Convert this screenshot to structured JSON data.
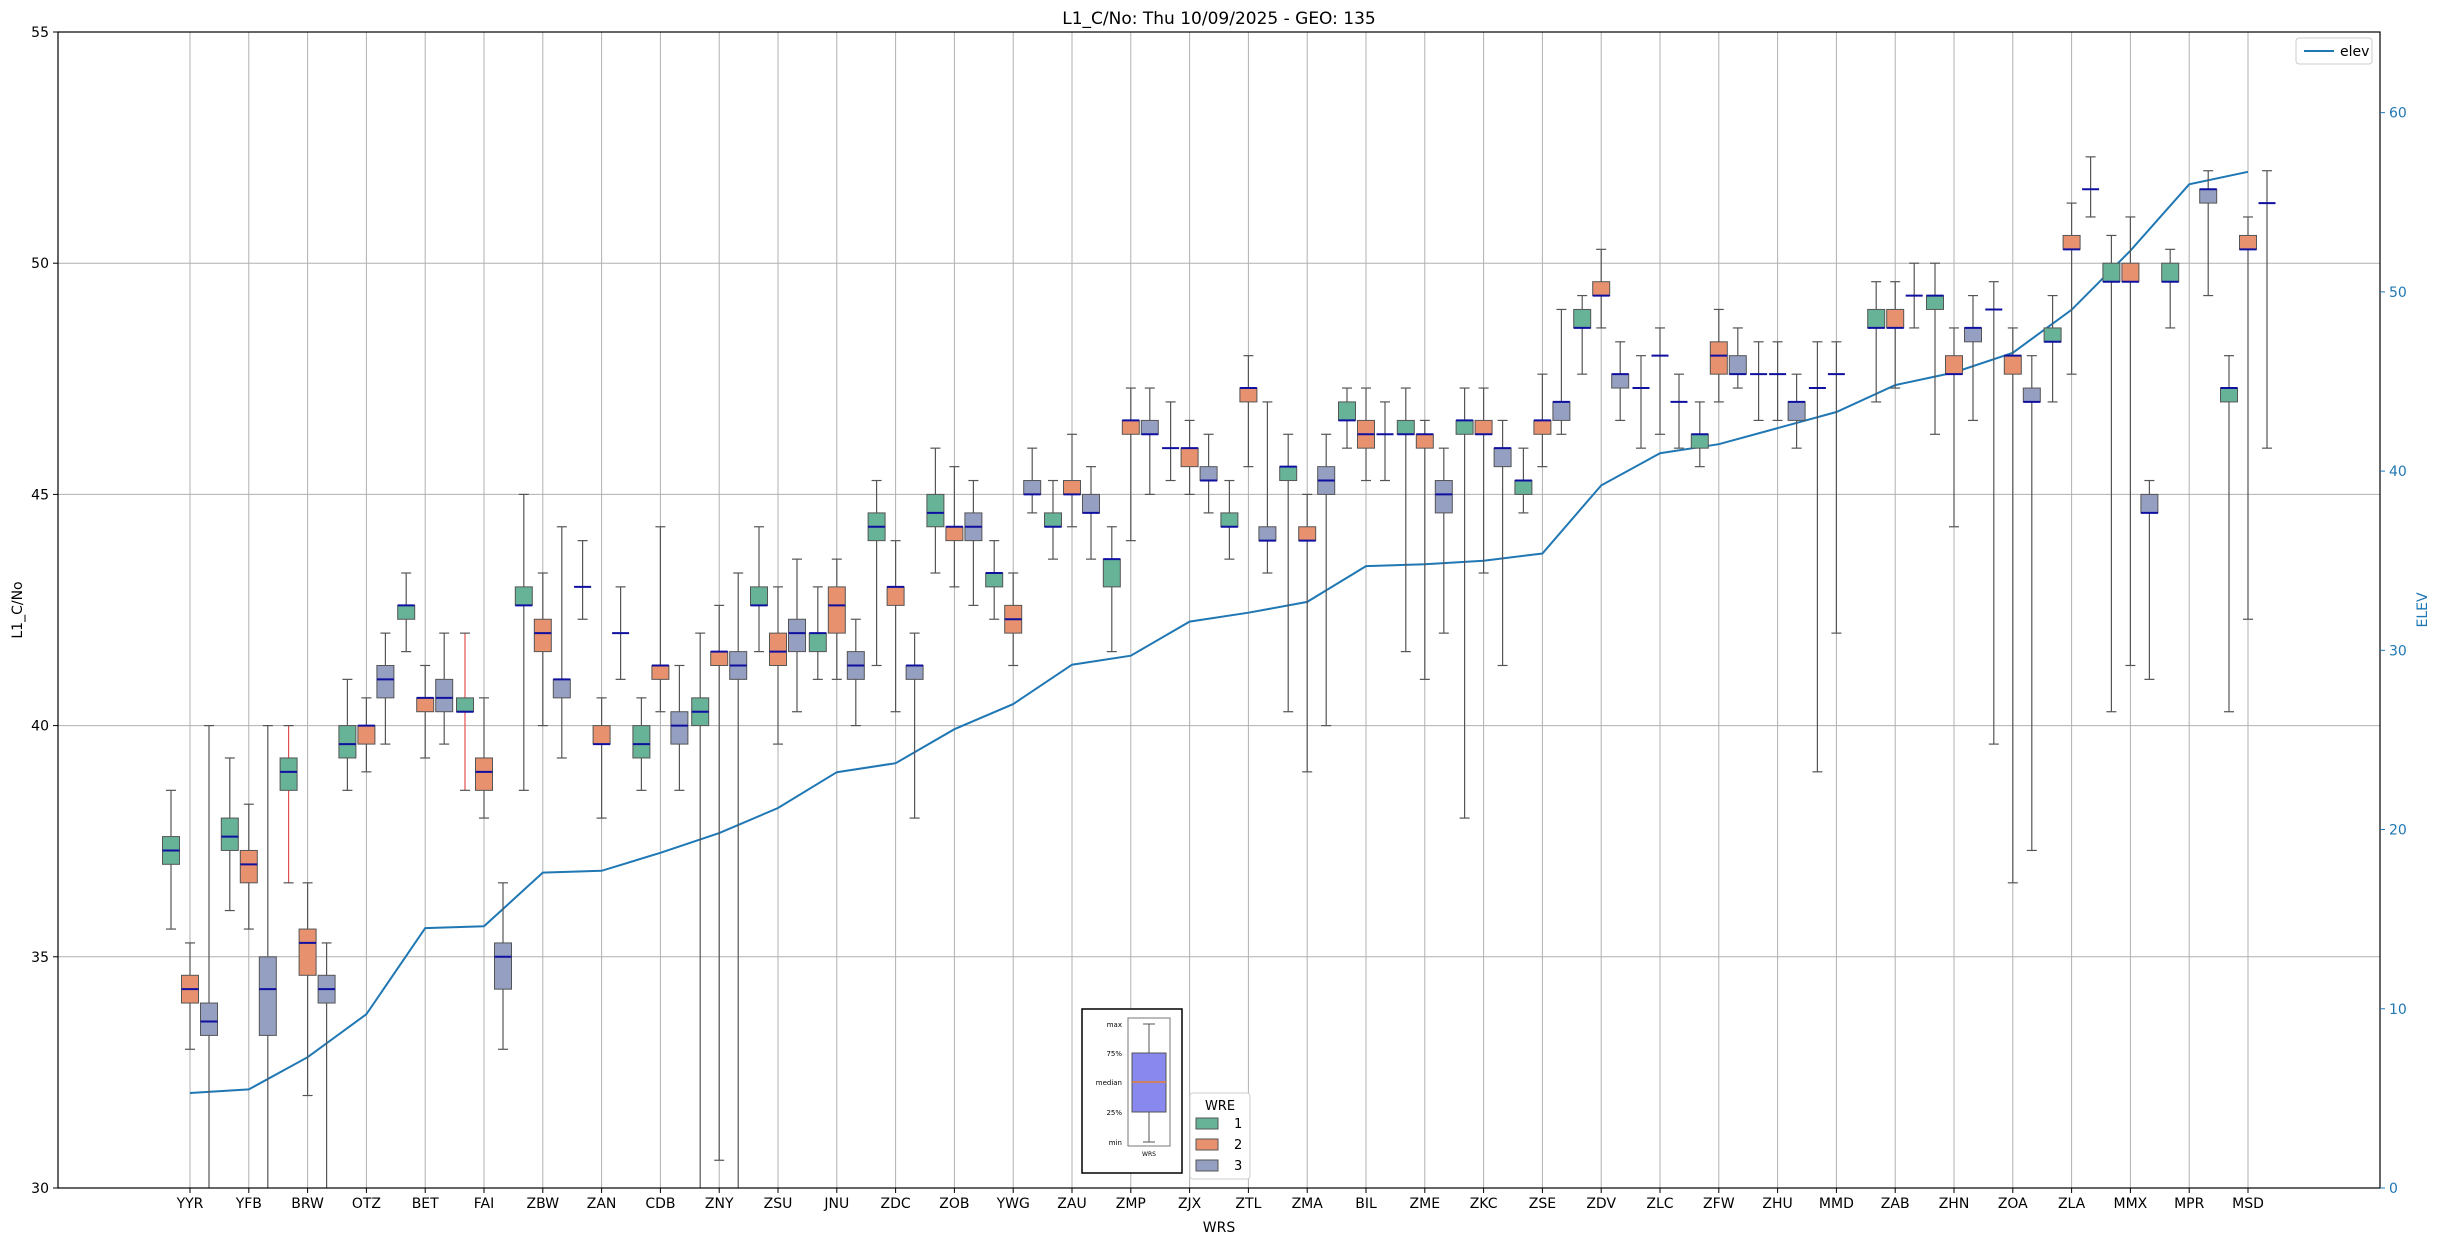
{
  "chart_data": {
    "type": "box",
    "title": "L1_C/No: Thu 10/09/2025 - GEO: 135",
    "xlabel": "WRS",
    "ylabel": "L1_C/No",
    "y2label": "ELEV",
    "ylim": [
      30,
      55
    ],
    "y2lim": [
      0,
      64.5
    ],
    "yticks": [
      30,
      35,
      40,
      45,
      50,
      55
    ],
    "y2ticks": [
      0,
      10,
      20,
      30,
      40,
      50,
      60
    ],
    "grid": true,
    "categories": [
      "YYR",
      "YFB",
      "BRW",
      "OTZ",
      "BET",
      "FAI",
      "ZBW",
      "ZAN",
      "CDB",
      "ZNY",
      "ZSU",
      "JNU",
      "ZDC",
      "ZOB",
      "YWG",
      "ZAU",
      "ZMP",
      "ZJX",
      "ZTL",
      "ZMA",
      "BIL",
      "ZME",
      "ZKC",
      "ZSE",
      "ZDV",
      "ZLC",
      "ZFW",
      "ZHU",
      "MMD",
      "ZAB",
      "ZHN",
      "ZOA",
      "ZLA",
      "MMX",
      "MPR",
      "MSD"
    ],
    "wre_colors": {
      "1": "#66b398",
      "2": "#e8916e",
      "3": "#949fc2"
    },
    "boxes": [
      {
        "wrs": "YYR",
        "wre": "1",
        "min": 35.6,
        "q1": 37.0,
        "median": 37.3,
        "q3": 37.6,
        "max": 38.6
      },
      {
        "wrs": "YYR",
        "wre": "2",
        "min": 33.0,
        "q1": 34.0,
        "median": 34.3,
        "q3": 34.6,
        "max": 35.3
      },
      {
        "wrs": "YYR",
        "wre": "3",
        "min": 30.0,
        "q1": 33.3,
        "median": 33.6,
        "q3": 34.0,
        "max": 40.0
      },
      {
        "wrs": "YFB",
        "wre": "1",
        "min": 36.0,
        "q1": 37.3,
        "median": 37.6,
        "q3": 38.0,
        "max": 39.3
      },
      {
        "wrs": "YFB",
        "wre": "2",
        "min": 35.6,
        "q1": 36.6,
        "median": 37.0,
        "q3": 37.3,
        "max": 38.3
      },
      {
        "wrs": "YFB",
        "wre": "3",
        "min": 30.0,
        "q1": 33.3,
        "median": 34.3,
        "q3": 35.0,
        "max": 40.0
      },
      {
        "wrs": "BRW",
        "wre": "1",
        "min": 36.6,
        "q1": 38.6,
        "median": 39.0,
        "q3": 39.3,
        "max": 40.0,
        "whisker_color": "#e05050"
      },
      {
        "wrs": "BRW",
        "wre": "2",
        "min": 32.0,
        "q1": 34.6,
        "median": 35.3,
        "q3": 35.6,
        "max": 36.6
      },
      {
        "wrs": "BRW",
        "wre": "3",
        "min": 30.0,
        "q1": 34.0,
        "median": 34.3,
        "q3": 34.6,
        "max": 35.3
      },
      {
        "wrs": "OTZ",
        "wre": "1",
        "min": 38.6,
        "q1": 39.3,
        "median": 39.6,
        "q3": 40.0,
        "max": 41.0
      },
      {
        "wrs": "OTZ",
        "wre": "2",
        "min": 39.0,
        "q1": 39.6,
        "median": 40.0,
        "q3": 40.0,
        "max": 40.6
      },
      {
        "wrs": "OTZ",
        "wre": "3",
        "min": 39.6,
        "q1": 40.6,
        "median": 41.0,
        "q3": 41.3,
        "max": 42.0
      },
      {
        "wrs": "BET",
        "wre": "1",
        "min": 41.6,
        "q1": 42.3,
        "median": 42.6,
        "q3": 42.6,
        "max": 43.3
      },
      {
        "wrs": "BET",
        "wre": "2",
        "min": 39.3,
        "q1": 40.3,
        "median": 40.6,
        "q3": 40.6,
        "max": 41.3
      },
      {
        "wrs": "BET",
        "wre": "3",
        "min": 39.6,
        "q1": 40.3,
        "median": 40.6,
        "q3": 41.0,
        "max": 42.0
      },
      {
        "wrs": "FAI",
        "wre": "1",
        "min": 38.6,
        "q1": 40.3,
        "median": 40.3,
        "q3": 40.6,
        "max": 42.0,
        "whisker_color": "#e05050"
      },
      {
        "wrs": "FAI",
        "wre": "2",
        "min": 38.0,
        "q1": 38.6,
        "median": 39.0,
        "q3": 39.3,
        "max": 40.6
      },
      {
        "wrs": "FAI",
        "wre": "3",
        "min": 33.0,
        "q1": 34.3,
        "median": 35.0,
        "q3": 35.3,
        "max": 36.6
      },
      {
        "wrs": "ZBW",
        "wre": "1",
        "min": 38.6,
        "q1": 42.6,
        "median": 42.6,
        "q3": 43.0,
        "max": 45.0
      },
      {
        "wrs": "ZBW",
        "wre": "2",
        "min": 40.0,
        "q1": 41.6,
        "median": 42.0,
        "q3": 42.3,
        "max": 43.3
      },
      {
        "wrs": "ZBW",
        "wre": "3",
        "min": 39.3,
        "q1": 40.6,
        "median": 41.0,
        "q3": 41.0,
        "max": 44.3
      },
      {
        "wrs": "ZAN",
        "wre": "1",
        "min": 42.3,
        "q1": 43.0,
        "median": 43.0,
        "q3": 43.0,
        "max": 44.0
      },
      {
        "wrs": "ZAN",
        "wre": "2",
        "min": 38.0,
        "q1": 39.6,
        "median": 39.6,
        "q3": 40.0,
        "max": 40.6
      },
      {
        "wrs": "ZAN",
        "wre": "3",
        "min": 41.0,
        "q1": 42.0,
        "median": 42.0,
        "q3": 42.0,
        "max": 43.0
      },
      {
        "wrs": "CDB",
        "wre": "1",
        "min": 38.6,
        "q1": 39.3,
        "median": 39.6,
        "q3": 40.0,
        "max": 40.6
      },
      {
        "wrs": "CDB",
        "wre": "2",
        "min": 40.3,
        "q1": 41.0,
        "median": 41.3,
        "q3": 41.3,
        "max": 44.3
      },
      {
        "wrs": "CDB",
        "wre": "3",
        "min": 38.6,
        "q1": 39.6,
        "median": 40.0,
        "q3": 40.3,
        "max": 41.3
      },
      {
        "wrs": "ZNY",
        "wre": "1",
        "min": 30.0,
        "q1": 40.0,
        "median": 40.3,
        "q3": 40.6,
        "max": 42.0
      },
      {
        "wrs": "ZNY",
        "wre": "2",
        "min": 30.6,
        "q1": 41.3,
        "median": 41.6,
        "q3": 41.6,
        "max": 42.6
      },
      {
        "wrs": "ZNY",
        "wre": "3",
        "min": 30.0,
        "q1": 41.0,
        "median": 41.3,
        "q3": 41.6,
        "max": 43.3
      },
      {
        "wrs": "ZSU",
        "wre": "1",
        "min": 41.6,
        "q1": 42.6,
        "median": 42.6,
        "q3": 43.0,
        "max": 44.3
      },
      {
        "wrs": "ZSU",
        "wre": "2",
        "min": 39.6,
        "q1": 41.3,
        "median": 41.6,
        "q3": 42.0,
        "max": 43.0
      },
      {
        "wrs": "ZSU",
        "wre": "3",
        "min": 40.3,
        "q1": 41.6,
        "median": 42.0,
        "q3": 42.3,
        "max": 43.6
      },
      {
        "wrs": "JNU",
        "wre": "1",
        "min": 41.0,
        "q1": 41.6,
        "median": 42.0,
        "q3": 42.0,
        "max": 43.0
      },
      {
        "wrs": "JNU",
        "wre": "2",
        "min": 41.0,
        "q1": 42.0,
        "median": 42.6,
        "q3": 43.0,
        "max": 43.6
      },
      {
        "wrs": "JNU",
        "wre": "3",
        "min": 40.0,
        "q1": 41.0,
        "median": 41.3,
        "q3": 41.6,
        "max": 42.3
      },
      {
        "wrs": "ZDC",
        "wre": "1",
        "min": 41.3,
        "q1": 44.0,
        "median": 44.3,
        "q3": 44.6,
        "max": 45.3
      },
      {
        "wrs": "ZDC",
        "wre": "2",
        "min": 40.3,
        "q1": 42.6,
        "median": 43.0,
        "q3": 43.0,
        "max": 44.0
      },
      {
        "wrs": "ZDC",
        "wre": "3",
        "min": 38.0,
        "q1": 41.0,
        "median": 41.3,
        "q3": 41.3,
        "max": 42.0
      },
      {
        "wrs": "ZOB",
        "wre": "1",
        "min": 43.3,
        "q1": 44.3,
        "median": 44.6,
        "q3": 45.0,
        "max": 46.0
      },
      {
        "wrs": "ZOB",
        "wre": "2",
        "min": 43.0,
        "q1": 44.0,
        "median": 44.3,
        "q3": 44.3,
        "max": 45.6
      },
      {
        "wrs": "ZOB",
        "wre": "3",
        "min": 42.6,
        "q1": 44.0,
        "median": 44.3,
        "q3": 44.6,
        "max": 45.3
      },
      {
        "wrs": "YWG",
        "wre": "1",
        "min": 42.3,
        "q1": 43.0,
        "median": 43.3,
        "q3": 43.3,
        "max": 44.0
      },
      {
        "wrs": "YWG",
        "wre": "2",
        "min": 41.3,
        "q1": 42.0,
        "median": 42.3,
        "q3": 42.6,
        "max": 43.3
      },
      {
        "wrs": "YWG",
        "wre": "3",
        "min": 44.6,
        "q1": 45.0,
        "median": 45.0,
        "q3": 45.3,
        "max": 46.0
      },
      {
        "wrs": "ZAU",
        "wre": "1",
        "min": 43.6,
        "q1": 44.3,
        "median": 44.3,
        "q3": 44.6,
        "max": 45.3
      },
      {
        "wrs": "ZAU",
        "wre": "2",
        "min": 44.3,
        "q1": 45.0,
        "median": 45.0,
        "q3": 45.3,
        "max": 46.3
      },
      {
        "wrs": "ZAU",
        "wre": "3",
        "min": 43.6,
        "q1": 44.6,
        "median": 44.6,
        "q3": 45.0,
        "max": 45.6
      },
      {
        "wrs": "ZMP",
        "wre": "1",
        "min": 41.6,
        "q1": 43.0,
        "median": 43.6,
        "q3": 43.6,
        "max": 44.3
      },
      {
        "wrs": "ZMP",
        "wre": "2",
        "min": 44.0,
        "q1": 46.3,
        "median": 46.6,
        "q3": 46.6,
        "max": 47.3
      },
      {
        "wrs": "ZMP",
        "wre": "3",
        "min": 45.0,
        "q1": 46.3,
        "median": 46.3,
        "q3": 46.6,
        "max": 47.3
      },
      {
        "wrs": "ZJX",
        "wre": "1",
        "min": 45.3,
        "q1": 46.0,
        "median": 46.0,
        "q3": 46.0,
        "max": 47.0
      },
      {
        "wrs": "ZJX",
        "wre": "2",
        "min": 45.0,
        "q1": 45.6,
        "median": 46.0,
        "q3": 46.0,
        "max": 46.6
      },
      {
        "wrs": "ZJX",
        "wre": "3",
        "min": 44.6,
        "q1": 45.3,
        "median": 45.3,
        "q3": 45.6,
        "max": 46.3
      },
      {
        "wrs": "ZTL",
        "wre": "1",
        "min": 43.6,
        "q1": 44.3,
        "median": 44.3,
        "q3": 44.6,
        "max": 45.3
      },
      {
        "wrs": "ZTL",
        "wre": "2",
        "min": 45.6,
        "q1": 47.0,
        "median": 47.3,
        "q3": 47.3,
        "max": 48.0
      },
      {
        "wrs": "ZTL",
        "wre": "3",
        "min": 43.3,
        "q1": 44.0,
        "median": 44.0,
        "q3": 44.3,
        "max": 47.0
      },
      {
        "wrs": "ZMA",
        "wre": "1",
        "min": 40.3,
        "q1": 45.3,
        "median": 45.6,
        "q3": 45.6,
        "max": 46.3
      },
      {
        "wrs": "ZMA",
        "wre": "2",
        "min": 39.0,
        "q1": 44.0,
        "median": 44.0,
        "q3": 44.3,
        "max": 45.0
      },
      {
        "wrs": "ZMA",
        "wre": "3",
        "min": 40.0,
        "q1": 45.0,
        "median": 45.3,
        "q3": 45.6,
        "max": 46.3
      },
      {
        "wrs": "BIL",
        "wre": "1",
        "min": 46.0,
        "q1": 46.6,
        "median": 46.6,
        "q3": 47.0,
        "max": 47.3
      },
      {
        "wrs": "BIL",
        "wre": "2",
        "min": 45.3,
        "q1": 46.0,
        "median": 46.3,
        "q3": 46.6,
        "max": 47.3
      },
      {
        "wrs": "BIL",
        "wre": "3",
        "min": 45.3,
        "q1": 46.3,
        "median": 46.3,
        "q3": 46.3,
        "max": 47.0
      },
      {
        "wrs": "ZME",
        "wre": "1",
        "min": 41.6,
        "q1": 46.3,
        "median": 46.3,
        "q3": 46.6,
        "max": 47.3
      },
      {
        "wrs": "ZME",
        "wre": "2",
        "min": 41.0,
        "q1": 46.0,
        "median": 46.3,
        "q3": 46.3,
        "max": 46.6
      },
      {
        "wrs": "ZME",
        "wre": "3",
        "min": 42.0,
        "q1": 44.6,
        "median": 45.0,
        "q3": 45.3,
        "max": 46.0
      },
      {
        "wrs": "ZKC",
        "wre": "1",
        "min": 38.0,
        "q1": 46.3,
        "median": 46.6,
        "q3": 46.6,
        "max": 47.3
      },
      {
        "wrs": "ZKC",
        "wre": "2",
        "min": 43.3,
        "q1": 46.3,
        "median": 46.3,
        "q3": 46.6,
        "max": 47.3
      },
      {
        "wrs": "ZKC",
        "wre": "3",
        "min": 41.3,
        "q1": 45.6,
        "median": 46.0,
        "q3": 46.0,
        "max": 46.6
      },
      {
        "wrs": "ZSE",
        "wre": "1",
        "min": 44.6,
        "q1": 45.0,
        "median": 45.3,
        "q3": 45.3,
        "max": 46.0
      },
      {
        "wrs": "ZSE",
        "wre": "2",
        "min": 45.6,
        "q1": 46.3,
        "median": 46.6,
        "q3": 46.6,
        "max": 47.6
      },
      {
        "wrs": "ZSE",
        "wre": "3",
        "min": 46.3,
        "q1": 46.6,
        "median": 47.0,
        "q3": 47.0,
        "max": 49.0
      },
      {
        "wrs": "ZDV",
        "wre": "1",
        "min": 47.6,
        "q1": 48.6,
        "median": 48.6,
        "q3": 49.0,
        "max": 49.3
      },
      {
        "wrs": "ZDV",
        "wre": "2",
        "min": 48.6,
        "q1": 49.3,
        "median": 49.3,
        "q3": 49.6,
        "max": 50.3
      },
      {
        "wrs": "ZDV",
        "wre": "3",
        "min": 46.6,
        "q1": 47.3,
        "median": 47.6,
        "q3": 47.6,
        "max": 48.3
      },
      {
        "wrs": "ZLC",
        "wre": "1",
        "min": 46.0,
        "q1": 47.3,
        "median": 47.3,
        "q3": 47.3,
        "max": 48.0
      },
      {
        "wrs": "ZLC",
        "wre": "2",
        "min": 46.3,
        "q1": 48.0,
        "median": 48.0,
        "q3": 48.0,
        "max": 48.6
      },
      {
        "wrs": "ZLC",
        "wre": "3",
        "min": 46.0,
        "q1": 47.0,
        "median": 47.0,
        "q3": 47.0,
        "max": 47.6
      },
      {
        "wrs": "ZFW",
        "wre": "1",
        "min": 45.6,
        "q1": 46.0,
        "median": 46.3,
        "q3": 46.3,
        "max": 47.0
      },
      {
        "wrs": "ZFW",
        "wre": "2",
        "min": 47.0,
        "q1": 47.6,
        "median": 48.0,
        "q3": 48.3,
        "max": 49.0
      },
      {
        "wrs": "ZFW",
        "wre": "3",
        "min": 47.3,
        "q1": 47.6,
        "median": 47.6,
        "q3": 48.0,
        "max": 48.6
      },
      {
        "wrs": "ZHU",
        "wre": "1",
        "min": 46.6,
        "q1": 47.6,
        "median": 47.6,
        "q3": 47.6,
        "max": 48.3
      },
      {
        "wrs": "ZHU",
        "wre": "2",
        "min": 46.6,
        "q1": 47.6,
        "median": 47.6,
        "q3": 47.6,
        "max": 48.3
      },
      {
        "wrs": "ZHU",
        "wre": "3",
        "min": 46.0,
        "q1": 46.6,
        "median": 47.0,
        "q3": 47.0,
        "max": 47.6
      },
      {
        "wrs": "MMD",
        "wre": "1",
        "min": 39.0,
        "q1": 47.3,
        "median": 47.3,
        "q3": 47.3,
        "max": 48.3
      },
      {
        "wrs": "MMD",
        "wre": "2",
        "min": 42.0,
        "q1": 47.6,
        "median": 47.6,
        "q3": 47.6,
        "max": 48.3
      },
      {
        "wrs": "ZAB",
        "wre": "1",
        "min": 47.0,
        "q1": 48.6,
        "median": 48.6,
        "q3": 49.0,
        "max": 49.6
      },
      {
        "wrs": "ZAB",
        "wre": "2",
        "min": 47.3,
        "q1": 48.6,
        "median": 48.6,
        "q3": 49.0,
        "max": 49.6
      },
      {
        "wrs": "ZAB",
        "wre": "3",
        "min": 48.6,
        "q1": 49.3,
        "median": 49.3,
        "q3": 49.3,
        "max": 50.0
      },
      {
        "wrs": "ZHN",
        "wre": "1",
        "min": 46.3,
        "q1": 49.0,
        "median": 49.3,
        "q3": 49.3,
        "max": 50.0
      },
      {
        "wrs": "ZHN",
        "wre": "2",
        "min": 44.3,
        "q1": 47.6,
        "median": 47.6,
        "q3": 48.0,
        "max": 48.6
      },
      {
        "wrs": "ZHN",
        "wre": "3",
        "min": 46.6,
        "q1": 48.3,
        "median": 48.6,
        "q3": 48.6,
        "max": 49.3
      },
      {
        "wrs": "ZOA",
        "wre": "1",
        "min": 39.6,
        "q1": 49.0,
        "median": 49.0,
        "q3": 49.0,
        "max": 49.6
      },
      {
        "wrs": "ZOA",
        "wre": "2",
        "min": 36.6,
        "q1": 47.6,
        "median": 48.0,
        "q3": 48.0,
        "max": 48.6
      },
      {
        "wrs": "ZOA",
        "wre": "3",
        "min": 37.3,
        "q1": 47.0,
        "median": 47.0,
        "q3": 47.3,
        "max": 48.0
      },
      {
        "wrs": "ZLA",
        "wre": "1",
        "min": 47.0,
        "q1": 48.3,
        "median": 48.3,
        "q3": 48.6,
        "max": 49.3
      },
      {
        "wrs": "ZLA",
        "wre": "2",
        "min": 47.6,
        "q1": 50.3,
        "median": 50.3,
        "q3": 50.6,
        "max": 51.3
      },
      {
        "wrs": "ZLA",
        "wre": "3",
        "min": 51.0,
        "q1": 51.6,
        "median": 51.6,
        "q3": 51.6,
        "max": 52.3
      },
      {
        "wrs": "MMX",
        "wre": "1",
        "min": 40.3,
        "q1": 49.6,
        "median": 49.6,
        "q3": 50.0,
        "max": 50.6
      },
      {
        "wrs": "MMX",
        "wre": "2",
        "min": 41.3,
        "q1": 49.6,
        "median": 49.6,
        "q3": 50.0,
        "max": 51.0
      },
      {
        "wrs": "MMX",
        "wre": "3",
        "min": 41.0,
        "q1": 44.6,
        "median": 44.6,
        "q3": 45.0,
        "max": 45.3
      },
      {
        "wrs": "MPR",
        "wre": "1",
        "min": 48.6,
        "q1": 49.6,
        "median": 49.6,
        "q3": 50.0,
        "max": 50.3
      },
      {
        "wrs": "MPR",
        "wre": "3",
        "min": 49.3,
        "q1": 51.3,
        "median": 51.6,
        "q3": 51.6,
        "max": 52.0
      },
      {
        "wrs": "MSD",
        "wre": "1",
        "min": 40.3,
        "q1": 47.0,
        "median": 47.3,
        "q3": 47.3,
        "max": 48.0
      },
      {
        "wrs": "MSD",
        "wre": "2",
        "min": 42.3,
        "q1": 50.3,
        "median": 50.3,
        "q3": 50.6,
        "max": 51.0
      },
      {
        "wrs": "MSD",
        "wre": "3",
        "min": 46.0,
        "q1": 51.3,
        "median": 51.3,
        "q3": 51.3,
        "max": 52.0
      }
    ],
    "elev_series": {
      "name": "elev",
      "color": "#1f77b4",
      "values": [
        5.3,
        5.5,
        7.3,
        9.7,
        14.5,
        14.6,
        17.6,
        17.7,
        18.7,
        19.8,
        21.2,
        23.2,
        23.7,
        25.6,
        27.0,
        29.2,
        29.7,
        31.6,
        32.1,
        32.7,
        34.7,
        34.8,
        35.0,
        35.4,
        39.2,
        41.0,
        41.5,
        42.4,
        43.3,
        44.8,
        45.5,
        46.6,
        49.0,
        52.3,
        56.0,
        56.7
      ]
    },
    "legend_elev": {
      "label": "elev",
      "placement": "top-right"
    },
    "legend_wre": {
      "title": "WRE",
      "items": [
        "1",
        "2",
        "3"
      ],
      "placement": "bottom-center"
    },
    "key_inset": {
      "labels": [
        "max",
        "75%",
        "median",
        "25%",
        "min"
      ],
      "xlabel": "WRS"
    }
  }
}
